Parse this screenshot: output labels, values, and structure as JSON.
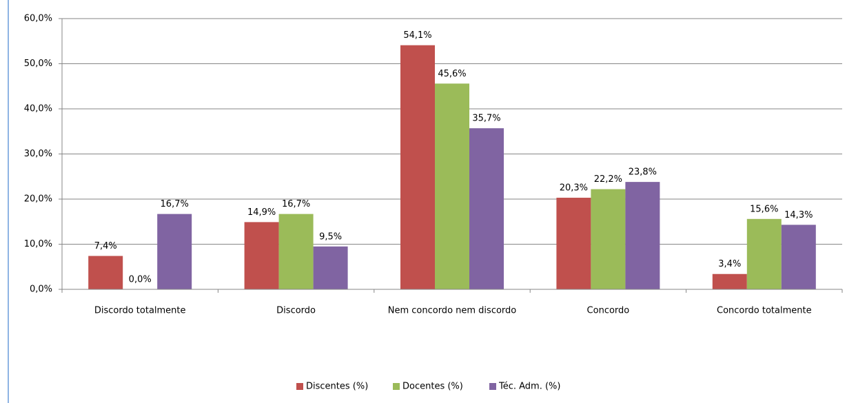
{
  "chart_data": {
    "type": "bar",
    "categories": [
      "Discordo totalmente",
      "Discordo",
      "Nem concordo nem discordo",
      "Concordo",
      "Concordo totalmente"
    ],
    "series": [
      {
        "name": "Discentes (%)",
        "color": "#c0504d",
        "values": [
          7.4,
          14.9,
          54.1,
          20.3,
          3.4
        ],
        "value_labels": [
          "7,4%",
          "14,9%",
          "54,1%",
          "20,3%",
          "3,4%"
        ]
      },
      {
        "name": "Docentes (%)",
        "color": "#9bbb59",
        "values": [
          0.0,
          16.7,
          45.6,
          22.2,
          15.6
        ],
        "value_labels": [
          "0,0%",
          "16,7%",
          "45,6%",
          "22,2%",
          "15,6%"
        ]
      },
      {
        "name": "Téc. Adm. (%)",
        "color": "#8064a2",
        "values": [
          16.7,
          9.5,
          35.7,
          23.8,
          14.3
        ],
        "value_labels": [
          "16,7%",
          "9,5%",
          "35,7%",
          "23,8%",
          "14,3%"
        ]
      }
    ],
    "ylim": [
      0,
      60
    ],
    "yticks": [
      {
        "value": 0,
        "label": "0,0%"
      },
      {
        "value": 10,
        "label": "10,0%"
      },
      {
        "value": 20,
        "label": "20,0%"
      },
      {
        "value": 30,
        "label": "30,0%"
      },
      {
        "value": 40,
        "label": "40,0%"
      },
      {
        "value": 50,
        "label": "50,0%"
      },
      {
        "value": 60,
        "label": "60,0%"
      }
    ],
    "grid": true,
    "legend": "bottom"
  }
}
